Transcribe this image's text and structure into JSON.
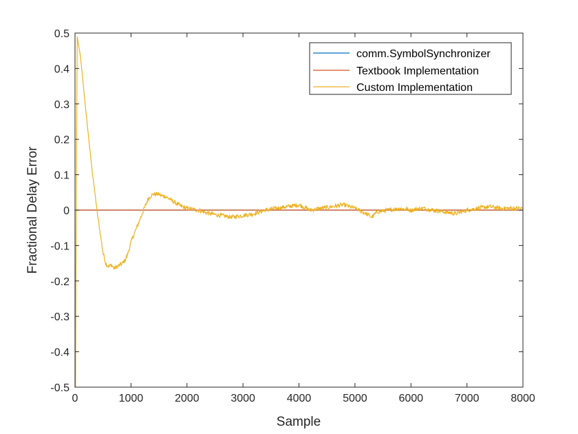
{
  "chart_data": {
    "type": "line",
    "title": "",
    "xlabel": "Sample",
    "ylabel": "Fractional Delay Error",
    "xlim": [
      0,
      8000
    ],
    "ylim": [
      -0.5,
      0.5
    ],
    "xticks": [
      0,
      1000,
      2000,
      3000,
      4000,
      5000,
      6000,
      7000,
      8000
    ],
    "yticks": [
      -0.5,
      -0.4,
      -0.3,
      -0.2,
      -0.1,
      0,
      0.1,
      0.2,
      0.3,
      0.4,
      0.5
    ],
    "xtick_labels": [
      "0",
      "1000",
      "2000",
      "3000",
      "4000",
      "5000",
      "6000",
      "7000",
      "8000"
    ],
    "ytick_labels": [
      "-0.5",
      "-0.4",
      "-0.3",
      "-0.2",
      "-0.1",
      "0",
      "0.1",
      "0.2",
      "0.3",
      "0.4",
      "0.5"
    ],
    "grid": false,
    "legend_position": "top-right",
    "series": [
      {
        "name": "comm.SymbolSynchronizer",
        "color": "#0072BD",
        "x": [
          0,
          8000
        ],
        "y": [
          0,
          0
        ]
      },
      {
        "name": "Textbook Implementation",
        "color": "#D95319",
        "x": [
          0,
          8000
        ],
        "y": [
          0,
          0
        ]
      },
      {
        "name": "Custom Implementation",
        "color": "#EDB120",
        "x": [
          0,
          10,
          25,
          40,
          60,
          100,
          200,
          300,
          400,
          500,
          550,
          600,
          650,
          700,
          750,
          800,
          850,
          900,
          950,
          1000,
          1050,
          1100,
          1150,
          1200,
          1250,
          1300,
          1350,
          1400,
          1450,
          1500,
          1550,
          1600,
          1650,
          1700,
          1750,
          1800,
          1900,
          2000,
          2200,
          2400,
          2600,
          2800,
          3000,
          3200,
          3400,
          3600,
          3800,
          4000,
          4200,
          4400,
          4600,
          4800,
          5000,
          5200,
          5300,
          5400,
          5600,
          5800,
          6000,
          6200,
          6400,
          6600,
          6800,
          7000,
          7200,
          7400,
          7600,
          7800,
          8000
        ],
        "y": [
          0.0,
          -0.5,
          0.1,
          0.49,
          0.47,
          0.43,
          0.27,
          0.12,
          -0.01,
          -0.12,
          -0.15,
          -0.16,
          -0.155,
          -0.165,
          -0.16,
          -0.155,
          -0.15,
          -0.14,
          -0.12,
          -0.09,
          -0.07,
          -0.05,
          -0.03,
          -0.01,
          0.01,
          0.03,
          0.04,
          0.045,
          0.045,
          0.045,
          0.04,
          0.04,
          0.035,
          0.03,
          0.025,
          0.02,
          0.01,
          0.005,
          0.0,
          -0.01,
          -0.015,
          -0.02,
          -0.015,
          -0.01,
          0.0,
          0.005,
          0.01,
          0.015,
          0.0,
          0.005,
          0.01,
          0.015,
          0.005,
          -0.01,
          -0.02,
          -0.005,
          0.0,
          0.005,
          0.0,
          0.005,
          0.0,
          -0.005,
          -0.01,
          0.0,
          0.005,
          0.01,
          0.005,
          0.005,
          0.005
        ]
      }
    ]
  }
}
